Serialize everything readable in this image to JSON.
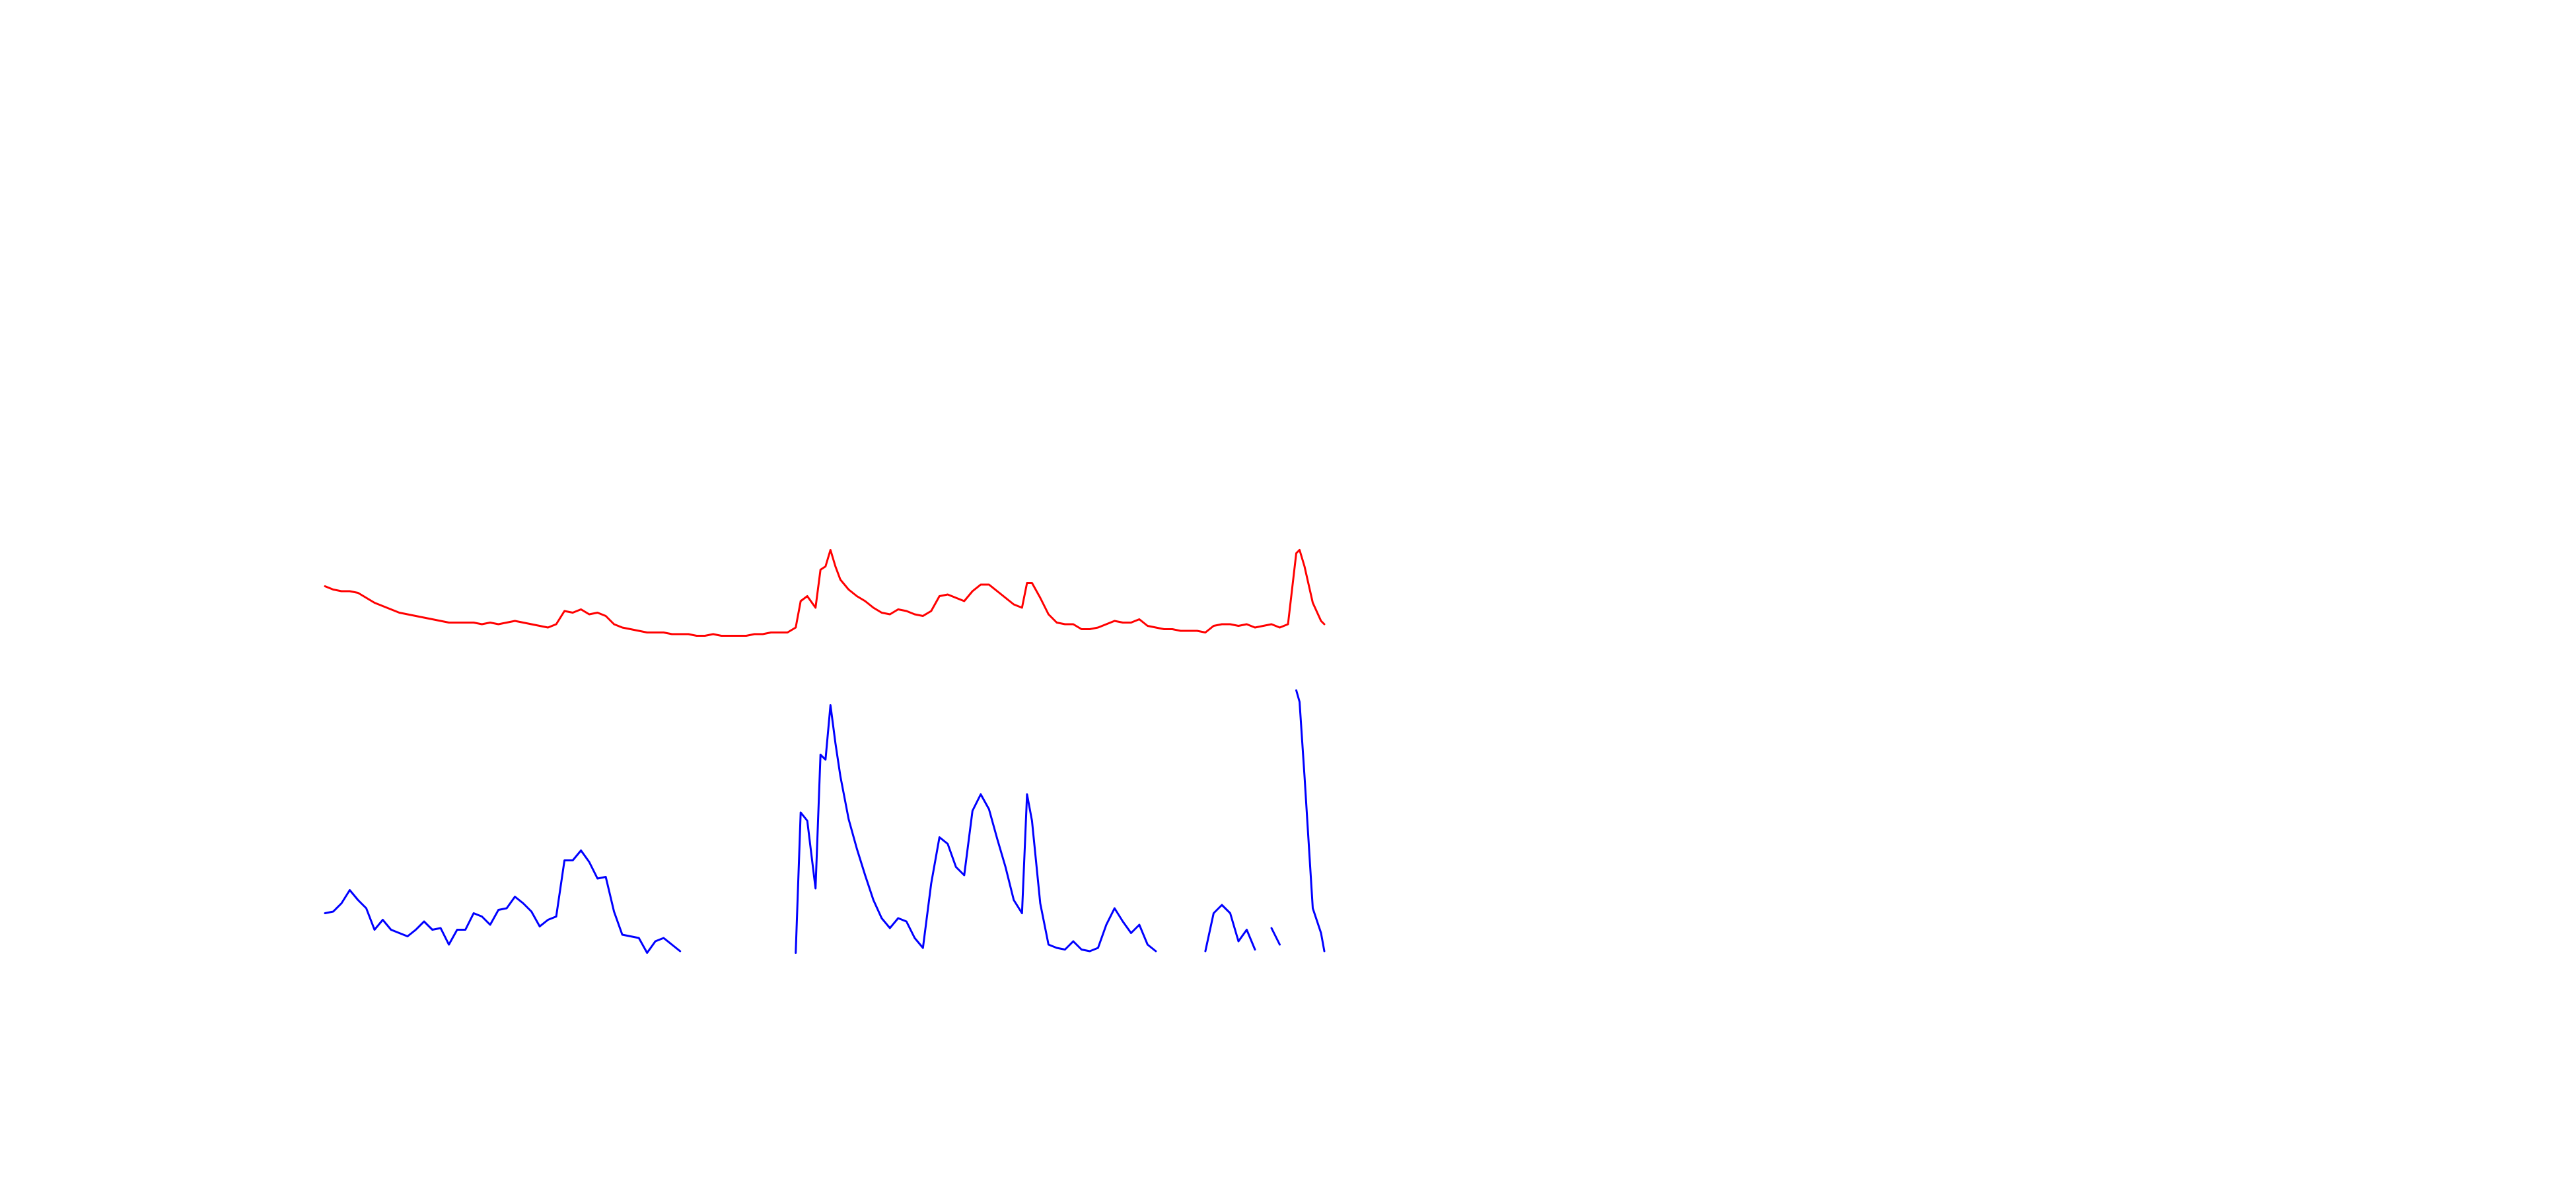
{
  "chart_data": {
    "type": "line",
    "x": [
      197,
      202,
      207,
      212,
      217,
      222,
      227,
      232,
      237,
      242,
      247,
      252,
      257,
      262,
      267,
      272,
      277,
      282,
      287,
      292,
      297,
      302,
      307,
      312,
      317,
      322,
      327,
      332,
      337,
      342,
      347,
      352,
      357,
      362,
      367,
      372,
      377,
      382,
      387,
      392,
      397,
      402,
      407,
      412,
      417,
      422,
      427,
      432,
      437,
      442,
      447,
      452,
      457,
      462,
      467,
      472,
      477,
      482,
      485,
      489,
      494,
      497,
      500,
      503,
      506,
      509,
      514,
      519,
      524,
      529,
      534,
      539,
      544,
      549,
      554,
      559,
      564,
      569,
      574,
      579,
      584,
      589,
      594,
      599,
      604,
      609,
      614,
      619,
      622,
      625,
      630,
      635,
      640,
      645,
      650,
      655,
      660,
      665,
      670,
      675,
      680,
      685,
      690,
      695,
      700,
      705,
      710,
      715,
      720,
      725,
      730,
      735,
      740,
      745,
      750,
      755,
      760,
      765,
      770,
      775,
      780,
      785,
      787,
      790,
      795,
      800,
      802
    ],
    "xlim": [
      197,
      802
    ],
    "ylim": [
      0,
      280
    ],
    "series": [
      {
        "color": "#ff0000",
        "values": [
          223,
          221,
          220,
          220,
          219,
          216,
          213,
          211,
          209,
          207,
          206,
          205,
          204,
          203,
          202,
          201,
          201,
          201,
          201,
          200,
          201,
          200,
          201,
          202,
          201,
          200,
          199,
          198,
          200,
          208,
          207,
          209,
          206,
          207,
          205,
          200,
          198,
          197,
          196,
          195,
          195,
          195,
          194,
          194,
          194,
          193,
          193,
          194,
          193,
          193,
          193,
          193,
          194,
          194,
          195,
          195,
          195,
          198,
          214,
          217,
          210,
          233,
          235,
          245,
          235,
          227,
          221,
          217,
          214,
          210,
          207,
          206,
          209,
          208,
          206,
          205,
          208,
          217,
          218,
          216,
          214,
          220,
          224,
          224,
          220,
          216,
          212,
          210,
          225,
          225,
          216,
          206,
          201,
          200,
          200,
          197,
          197,
          198,
          200,
          202,
          201,
          201,
          203,
          199,
          198,
          197,
          197,
          196,
          196,
          196,
          195,
          199,
          200,
          200,
          199,
          200,
          198,
          199,
          200,
          198,
          200,
          243,
          245,
          235,
          213,
          202,
          200
        ]
      },
      {
        "color": "#0000ff",
        "values": [
          25,
          26,
          31,
          39,
          33,
          28,
          15,
          21,
          15,
          13,
          11,
          15,
          20,
          15,
          16,
          6,
          15,
          15,
          25,
          23,
          18,
          27,
          28,
          35,
          31,
          26,
          17,
          21,
          23,
          57,
          57,
          63,
          56,
          46,
          47,
          26,
          12,
          11,
          10,
          1,
          8,
          10,
          6,
          2,
          null,
          null,
          null,
          null,
          null,
          null,
          null,
          null,
          null,
          null,
          null,
          null,
          null,
          1,
          86,
          81,
          40,
          121,
          118,
          151,
          128,
          108,
          82,
          64,
          48,
          33,
          22,
          16,
          22,
          20,
          10,
          4,
          43,
          71,
          67,
          53,
          48,
          87,
          97,
          88,
          70,
          53,
          33,
          25,
          97,
          81,
          31,
          6,
          4,
          3,
          8,
          3,
          2,
          4,
          18,
          28,
          20,
          13,
          18,
          6,
          2,
          null,
          null,
          null,
          null,
          null,
          2,
          25,
          30,
          25,
          8,
          15,
          3,
          null,
          16,
          6,
          null,
          160,
          153,
          108,
          28,
          13,
          2
        ]
      }
    ]
  }
}
